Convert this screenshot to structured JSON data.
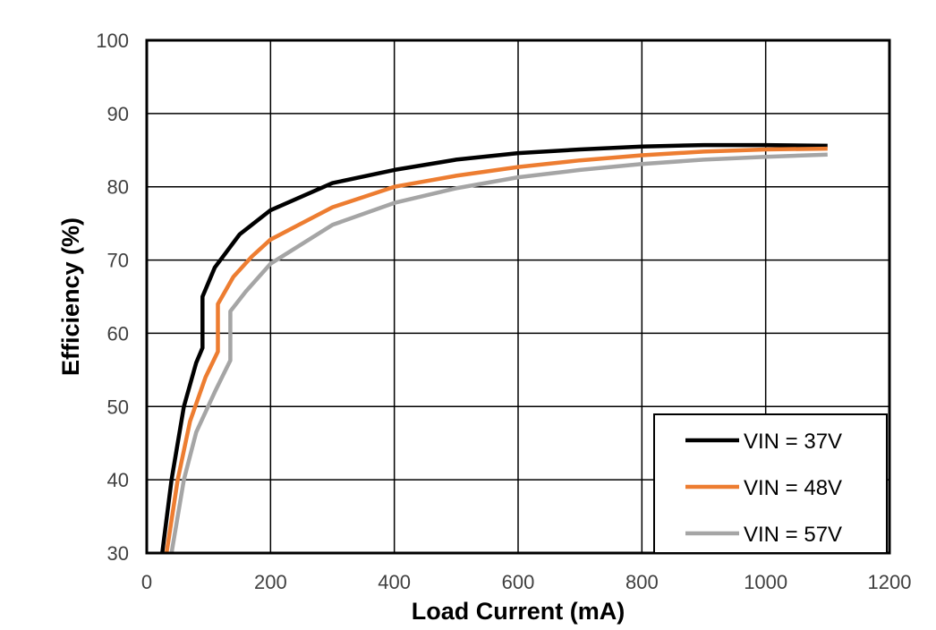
{
  "chart_data": {
    "type": "line",
    "title": "",
    "xlabel": "Load Current (mA)",
    "ylabel": "Efficiency (%)",
    "xlim": [
      0,
      1200
    ],
    "ylim": [
      30,
      100
    ],
    "xticks": [
      "0",
      "200",
      "400",
      "600",
      "800",
      "1000",
      "1200"
    ],
    "yticks": [
      "30",
      "40",
      "50",
      "60",
      "70",
      "80",
      "90",
      "100"
    ],
    "grid": true,
    "legend_position": "bottom-right",
    "series": [
      {
        "name": "VIN = 37V",
        "color": "#000000",
        "x": [
          25,
          40,
          60,
          80,
          90,
          90,
          110,
          150,
          200,
          300,
          400,
          500,
          600,
          700,
          800,
          900,
          1000,
          1100
        ],
        "y": [
          30,
          40,
          50,
          56,
          58,
          65,
          69,
          73.5,
          76.8,
          80.5,
          82.3,
          83.7,
          84.6,
          85.1,
          85.5,
          85.7,
          85.7,
          85.6
        ]
      },
      {
        "name": "VIN = 48V",
        "color": "#ED7D31",
        "x": [
          32,
          50,
          70,
          95,
          115,
          115,
          140,
          170,
          200,
          300,
          400,
          500,
          600,
          700,
          800,
          900,
          1000,
          1100
        ],
        "y": [
          30,
          40,
          48,
          54,
          57.5,
          64,
          67.7,
          70.5,
          72.8,
          77.2,
          80,
          81.5,
          82.7,
          83.6,
          84.3,
          84.8,
          85.1,
          85.2
        ]
      },
      {
        "name": "VIN = 57V",
        "color": "#A5A5A5",
        "x": [
          40,
          60,
          80,
          110,
          135,
          135,
          160,
          200,
          300,
          400,
          500,
          600,
          700,
          800,
          900,
          1000,
          1100
        ],
        "y": [
          30,
          40,
          46.5,
          52,
          56.3,
          63,
          65.7,
          69.5,
          74.8,
          77.8,
          79.8,
          81.3,
          82.3,
          83.1,
          83.7,
          84.1,
          84.4
        ]
      }
    ]
  }
}
